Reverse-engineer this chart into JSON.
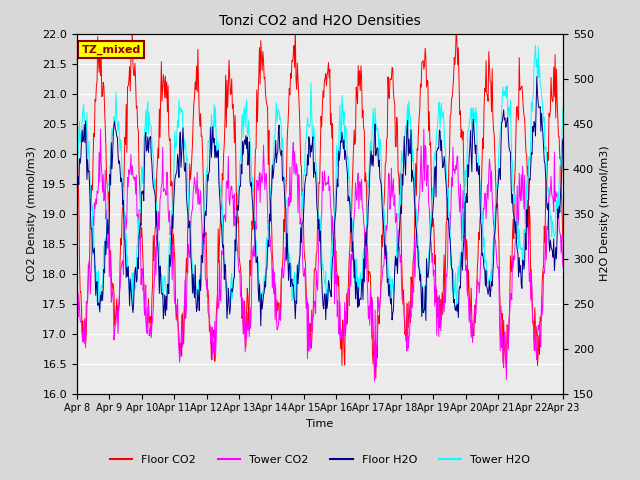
{
  "title": "Tonzi CO2 and H2O Densities",
  "xlabel": "Time",
  "ylabel_left": "CO2 Density (mmol/m3)",
  "ylabel_right": "H2O Density (mmol/m3)",
  "ylim_left": [
    16.0,
    22.0
  ],
  "ylim_right": [
    150,
    550
  ],
  "xtick_labels": [
    "Apr 8",
    "Apr 9",
    "Apr 10",
    "Apr 11",
    "Apr 12",
    "Apr 13",
    "Apr 14",
    "Apr 15",
    "Apr 16",
    "Apr 17",
    "Apr 18",
    "Apr 19",
    "Apr 20",
    "Apr 21",
    "Apr 22",
    "Apr 23"
  ],
  "annotation_text": "TZ_mixed",
  "annotation_color": "#8B0000",
  "annotation_bg": "#FFFF00",
  "colors": {
    "floor_co2": "#FF0000",
    "tower_co2": "#FF00FF",
    "floor_h2o": "#00008B",
    "tower_h2o": "#00FFFF"
  },
  "legend_labels": [
    "Floor CO2",
    "Tower CO2",
    "Floor H2O",
    "Tower H2O"
  ],
  "background_color": "#D8D8D8",
  "plot_bg": "#EBEBEB",
  "n_days": 15,
  "pts_per_day": 48,
  "seed": 42
}
